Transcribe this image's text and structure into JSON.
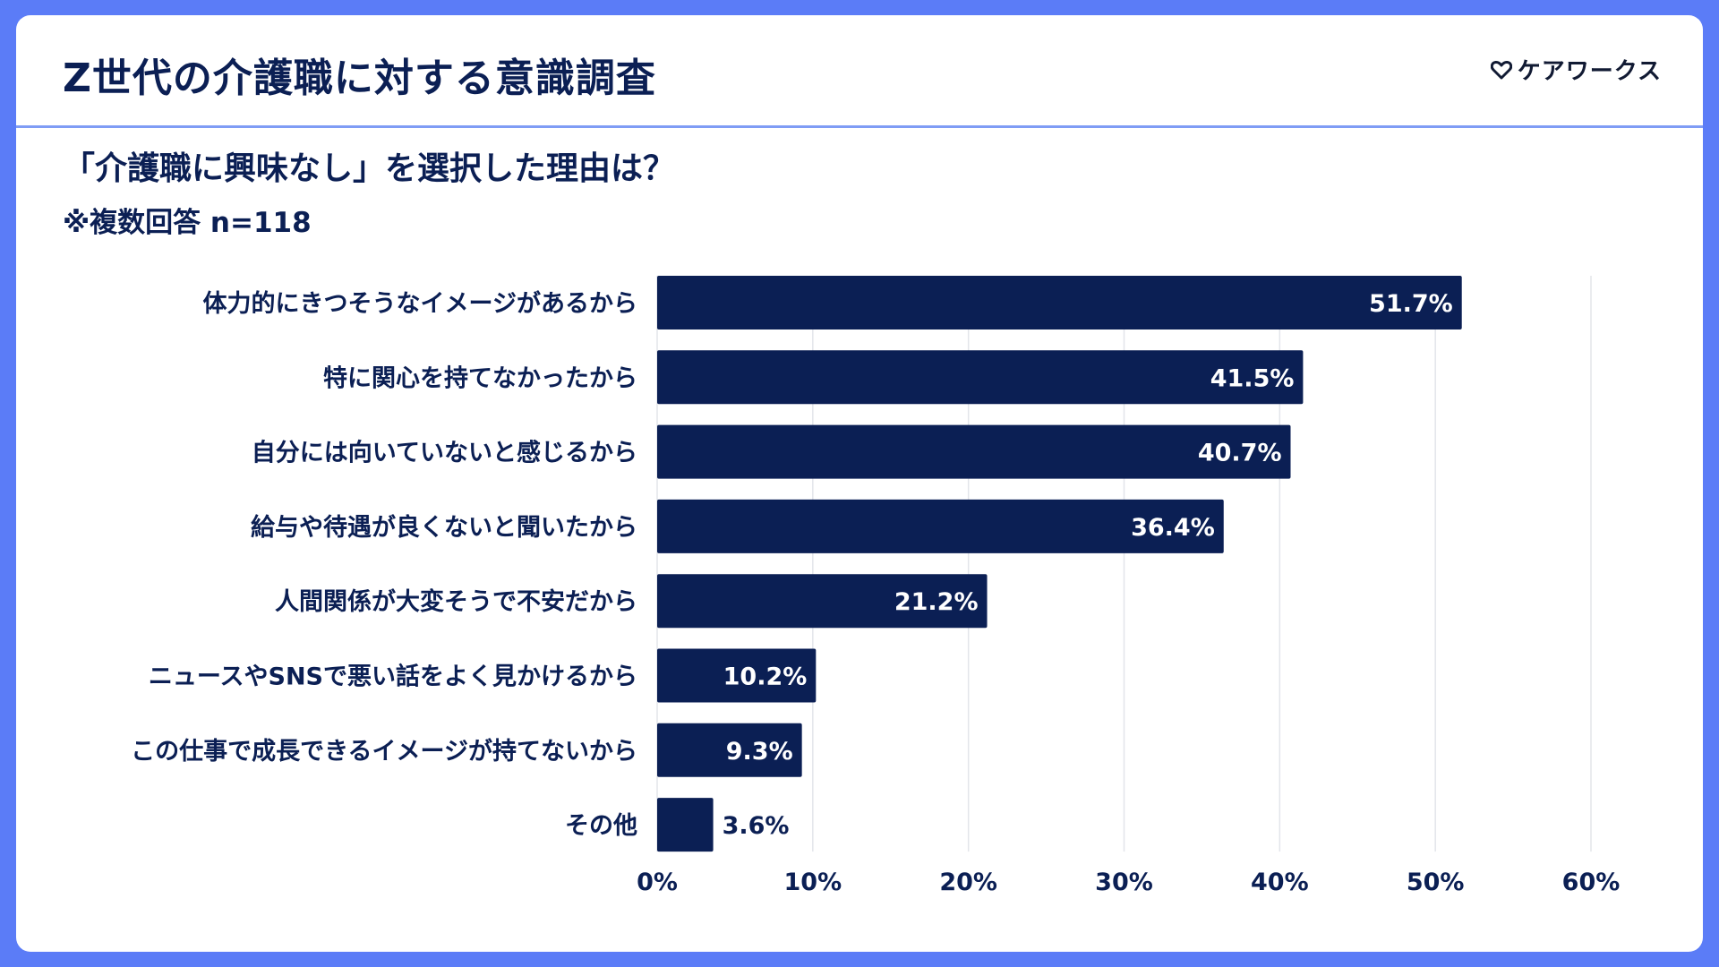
{
  "header": {
    "title": "Z世代の介護職に対する意識調査",
    "logo_text": "ケアワークス",
    "logo_icon": "heart-outline-icon"
  },
  "question": "「介護職に興味なし」を選択した理由は？",
  "note": "※複数回答 n=118",
  "colors": {
    "background": "#5b7cf7",
    "bar": "#0b1f54",
    "text": "#0b1f54",
    "divider": "#7f9cf5",
    "grid": "#e3e5ea"
  },
  "chart_data": {
    "type": "bar",
    "orientation": "horizontal",
    "categories": [
      "体力的にきつそうなイメージがあるから",
      "特に関心を持てなかったから",
      "自分には向いていないと感じるから",
      "給与や待遇が良くないと聞いたから",
      "人間関係が大変そうで不安だから",
      "ニュースやSNSで悪い話をよく見かけるから",
      "この仕事で成長できるイメージが持てないから",
      "その他"
    ],
    "values": [
      51.7,
      41.5,
      40.7,
      36.4,
      21.2,
      10.2,
      9.3,
      3.6
    ],
    "value_labels": [
      "51.7%",
      "41.5%",
      "40.7%",
      "36.4%",
      "21.2%",
      "10.2%",
      "9.3%",
      "3.6%"
    ],
    "xlim": [
      0,
      60
    ],
    "x_ticks": [
      "0%",
      "10%",
      "20%",
      "30%",
      "40%",
      "50%",
      "60%"
    ],
    "grid": true,
    "legend": "none"
  }
}
